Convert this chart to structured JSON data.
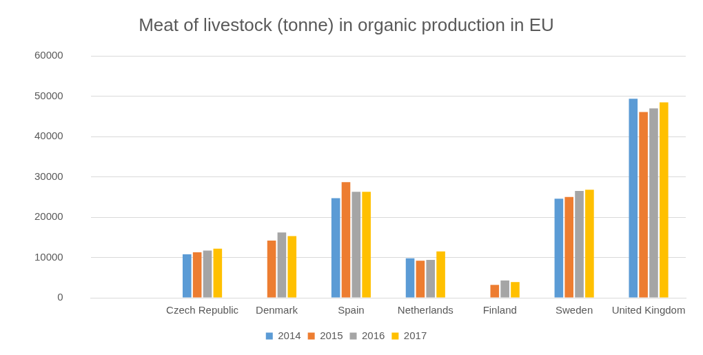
{
  "chart_data": {
    "type": "bar",
    "title": "Meat of livestock (tonne) in organic production in EU",
    "categories": [
      null,
      "Czech Republic",
      "Denmark",
      "Spain",
      "Netherlands",
      "Finland",
      "Sweden",
      "United Kingdom"
    ],
    "series": [
      {
        "name": "2014",
        "color": "#5b9bd5",
        "values": [
          null,
          10800,
          null,
          24700,
          9800,
          null,
          24600,
          49400
        ]
      },
      {
        "name": "2015",
        "color": "#ed7d31",
        "values": [
          null,
          11300,
          14200,
          28700,
          9200,
          3200,
          25000,
          46100
        ]
      },
      {
        "name": "2016",
        "color": "#a5a5a5",
        "values": [
          null,
          11700,
          16200,
          26300,
          9400,
          4300,
          26500,
          47000
        ]
      },
      {
        "name": "2017",
        "color": "#ffc000",
        "values": [
          null,
          12200,
          15300,
          26300,
          11500,
          3900,
          26800,
          48500
        ]
      }
    ],
    "ylim": [
      0,
      60000
    ],
    "yticks": [
      0,
      10000,
      20000,
      30000,
      40000,
      50000,
      60000
    ],
    "grid": "y",
    "legend": "bottom"
  }
}
